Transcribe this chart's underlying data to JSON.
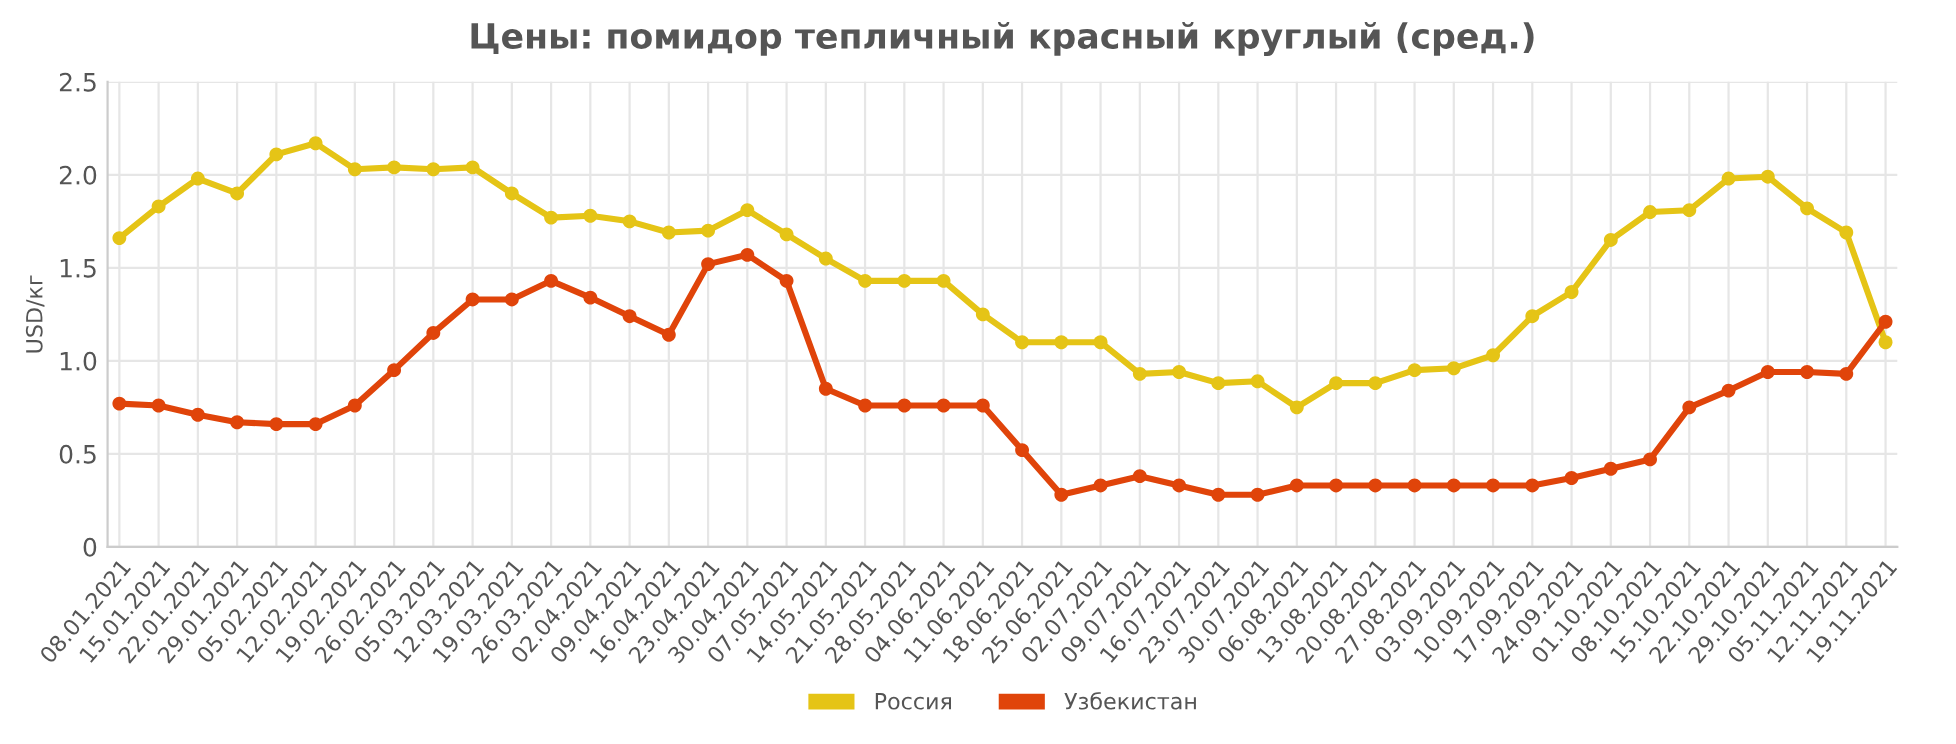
{
  "chart_data": {
    "type": "line",
    "title": "Цены: помидор тепличный красный круглый (сред.)",
    "ylabel": "USD/кг",
    "categories": [
      "08.01.2021",
      "15.01.2021",
      "22.01.2021",
      "29.01.2021",
      "05.02.2021",
      "12.02.2021",
      "19.02.2021",
      "26.02.2021",
      "05.03.2021",
      "12.03.2021",
      "19.03.2021",
      "26.03.2021",
      "02.04.2021",
      "09.04.2021",
      "16.04.2021",
      "23.04.2021",
      "30.04.2021",
      "07.05.2021",
      "14.05.2021",
      "21.05.2021",
      "28.05.2021",
      "04.06.2021",
      "11.06.2021",
      "18.06.2021",
      "25.06.2021",
      "02.07.2021",
      "09.07.2021",
      "16.07.2021",
      "23.07.2021",
      "30.07.2021",
      "06.08.2021",
      "13.08.2021",
      "20.08.2021",
      "27.08.2021",
      "03.09.2021",
      "10.09.2021",
      "17.09.2021",
      "24.09.2021",
      "01.10.2021",
      "08.10.2021",
      "15.10.2021",
      "22.10.2021",
      "29.10.2021",
      "05.11.2021",
      "12.11.2021",
      "19.11.2021"
    ],
    "series": [
      {
        "name": "Россия",
        "color": "#e5c416",
        "values": [
          1.66,
          1.83,
          1.98,
          1.9,
          2.11,
          2.17,
          2.03,
          2.04,
          2.03,
          2.04,
          1.9,
          1.77,
          1.78,
          1.75,
          1.69,
          1.7,
          1.81,
          1.68,
          1.55,
          1.43,
          1.43,
          1.43,
          1.25,
          1.1,
          1.1,
          1.1,
          0.93,
          0.94,
          0.88,
          0.89,
          0.75,
          0.88,
          0.88,
          0.95,
          0.96,
          1.03,
          1.24,
          1.37,
          1.65,
          1.8,
          1.81,
          1.98,
          1.99,
          1.82,
          1.69,
          1.1
        ]
      },
      {
        "name": "Узбекистан",
        "color": "#e0440a",
        "values": [
          0.77,
          0.76,
          0.71,
          0.67,
          0.66,
          0.66,
          0.76,
          0.95,
          1.15,
          1.33,
          1.33,
          1.43,
          1.34,
          1.24,
          1.14,
          1.52,
          1.57,
          1.43,
          0.85,
          0.76,
          0.76,
          0.76,
          0.76,
          0.52,
          0.28,
          0.33,
          0.38,
          0.33,
          0.28,
          0.28,
          0.33,
          0.33,
          0.33,
          0.33,
          0.33,
          0.33,
          0.33,
          0.37,
          0.42,
          0.47,
          0.75,
          0.84,
          0.94,
          0.94,
          0.93,
          1.21
        ]
      }
    ],
    "ylim": [
      0,
      2.5
    ],
    "yticks": [
      0,
      0.5,
      {
        "value": 1,
        "label": "1.0"
      },
      1.5,
      {
        "value": 2,
        "label": "2.0"
      },
      2.5
    ],
    "grid": true,
    "legend": "bottom",
    "marker": "circle",
    "line_style": "solid"
  }
}
